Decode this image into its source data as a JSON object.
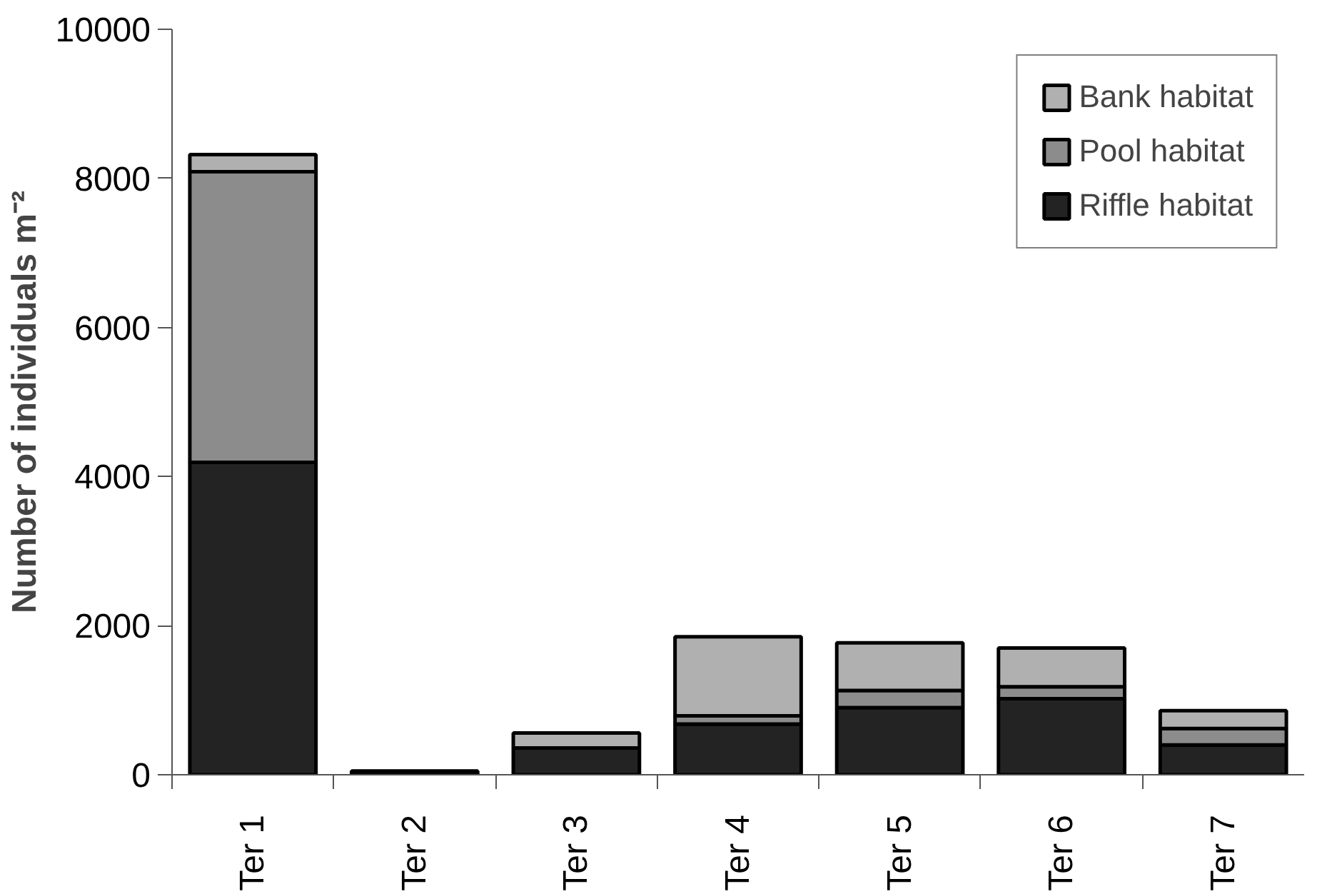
{
  "chart_data": {
    "type": "bar",
    "stacked": true,
    "ylabel": "Number of individuals m⁻²",
    "categories": [
      "Ter 1",
      "Ter 2",
      "Ter 3",
      "Ter 4",
      "Ter 5",
      "Ter 6",
      "Ter 7"
    ],
    "series": [
      {
        "name": "Riffle habitat",
        "color": "#232323",
        "values": [
          4190,
          50,
          360,
          680,
          900,
          1020,
          400
        ]
      },
      {
        "name": "Pool habitat",
        "color": "#8c8c8c",
        "values": [
          3900,
          null,
          null,
          110,
          230,
          160,
          220
        ]
      },
      {
        "name": "Bank habitat",
        "color": "#b0b0b0",
        "values": [
          230,
          null,
          200,
          1060,
          640,
          520,
          240
        ]
      }
    ],
    "ylim": [
      0,
      10000
    ],
    "yticks": [
      0,
      2000,
      4000,
      6000,
      8000,
      10000
    ],
    "grid": false,
    "legend": "top right"
  }
}
